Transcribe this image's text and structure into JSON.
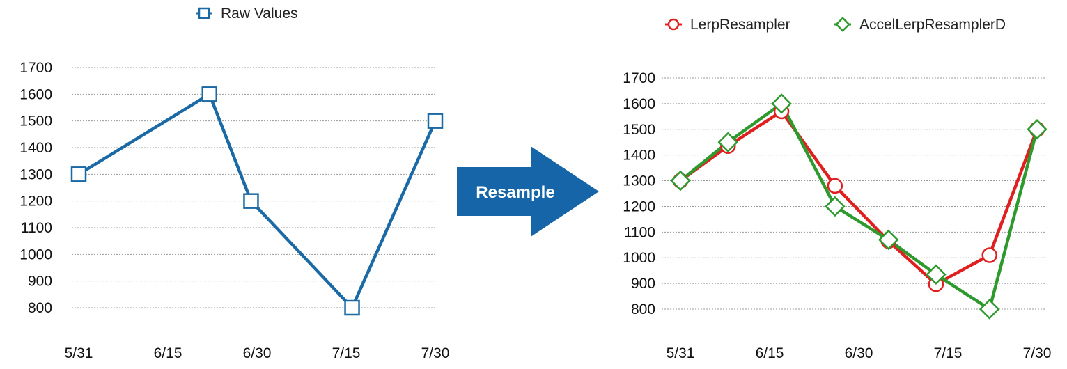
{
  "arrow": {
    "label": "Resample",
    "color": "#1565a8"
  },
  "chart_data": [
    {
      "type": "line",
      "title": "",
      "xlabel": "",
      "ylabel": "",
      "x_ticks": [
        "5/31",
        "6/15",
        "6/30",
        "7/15",
        "7/30"
      ],
      "x_range": [
        "5/31",
        "7/30"
      ],
      "yticks": [
        800,
        900,
        1000,
        1100,
        1200,
        1300,
        1400,
        1500,
        1600,
        1700
      ],
      "ylim": [
        800,
        1700
      ],
      "grid": "horizontal dotted",
      "legend_position": "top-center",
      "series": [
        {
          "name": "Raw Values",
          "color": "#1b6aa5",
          "marker": "square",
          "points": [
            {
              "x": "5/31",
              "y": 1300
            },
            {
              "x": "6/22",
              "y": 1600
            },
            {
              "x": "6/29",
              "y": 1200
            },
            {
              "x": "7/16",
              "y": 800
            },
            {
              "x": "7/30",
              "y": 1500
            }
          ]
        }
      ]
    },
    {
      "type": "line",
      "title": "",
      "xlabel": "",
      "ylabel": "",
      "x_ticks": [
        "5/31",
        "6/15",
        "6/30",
        "7/15",
        "7/30"
      ],
      "x_range": [
        "5/31",
        "7/30"
      ],
      "yticks": [
        800,
        900,
        1000,
        1100,
        1200,
        1300,
        1400,
        1500,
        1600,
        1700
      ],
      "ylim": [
        800,
        1700
      ],
      "grid": "horizontal dotted",
      "legend_position": "top-right",
      "series": [
        {
          "name": "LerpResampler",
          "color": "#e02020",
          "marker": "circle",
          "points": [
            {
              "x": "5/31",
              "y": 1300
            },
            {
              "x": "6/8",
              "y": 1435
            },
            {
              "x": "6/17",
              "y": 1570
            },
            {
              "x": "6/26",
              "y": 1280
            },
            {
              "x": "7/5",
              "y": 1065
            },
            {
              "x": "7/13",
              "y": 897
            },
            {
              "x": "7/22",
              "y": 1010
            },
            {
              "x": "7/30",
              "y": 1500
            }
          ]
        },
        {
          "name": "AccelLerpResamplerD",
          "color": "#2e9a2e",
          "marker": "diamond",
          "points": [
            {
              "x": "5/31",
              "y": 1300
            },
            {
              "x": "6/8",
              "y": 1450
            },
            {
              "x": "6/17",
              "y": 1600
            },
            {
              "x": "6/26",
              "y": 1200
            },
            {
              "x": "7/5",
              "y": 1070
            },
            {
              "x": "7/13",
              "y": 935
            },
            {
              "x": "7/22",
              "y": 800
            },
            {
              "x": "7/30",
              "y": 1500
            }
          ]
        }
      ]
    }
  ]
}
